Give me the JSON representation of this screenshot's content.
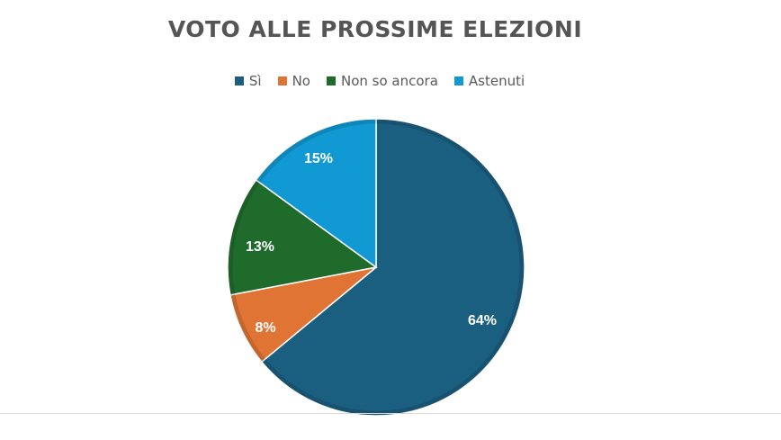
{
  "chart_data": {
    "type": "pie",
    "title": "VOTO ALLE PROSSIME ELEZIONI",
    "categories": [
      "Sì",
      "No",
      "Non so ancora",
      "Astenuti"
    ],
    "values": [
      64,
      8,
      13,
      15
    ],
    "value_labels": [
      "64%",
      "8%",
      "13%",
      "15%"
    ],
    "colors": [
      "#1b5f80",
      "#e07434",
      "#1f6b2c",
      "#1199d4"
    ],
    "legend_position": "top"
  }
}
